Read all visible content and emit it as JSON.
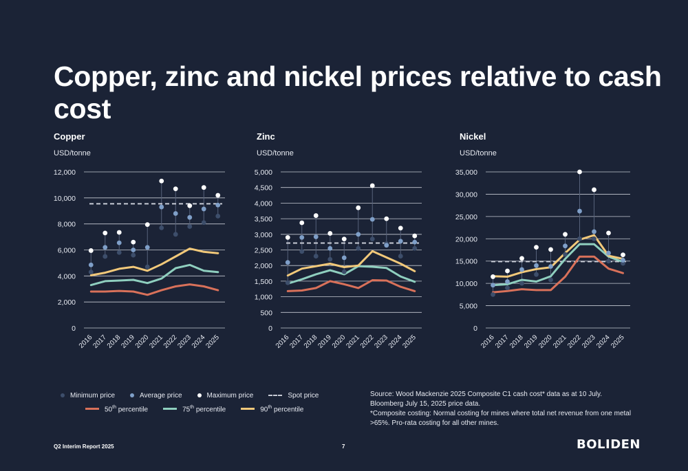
{
  "title": "Copper, zinc and nickel prices relative to cash cost",
  "legend": {
    "min": "Minimum price",
    "avg": "Average price",
    "max": "Maximum price",
    "spot": "Spot price",
    "p50": "50",
    "p75": "75",
    "p90": "90",
    "pct_suffix": "th",
    "pct_word": " percentile"
  },
  "source": {
    "line1": "Source: Wood Mackenzie 2025 Composite C1 cash cost* data as at 10 July. Bloomberg July 15, 2025 price data.",
    "line2": "*Composite costing: Normal costing for mines where total net revenue from one metal >65%. Pro-rata costing for all other mines."
  },
  "footer": {
    "report": "Q2 Interim Report 2025",
    "page": "7",
    "logo": "BOLIDEN"
  },
  "colors": {
    "min": "#3d4e6b",
    "avg": "#7f9fc8",
    "max": "#ffffff",
    "spot": "#c8ccd6",
    "p50": "#d9715a",
    "p75": "#8fcfbf",
    "p90": "#f2c97a",
    "grid": "#d9dde5"
  },
  "chart_data": [
    {
      "type": "line",
      "title": "Copper",
      "ylabel": "USD/tonne",
      "x": [
        "2016",
        "2017",
        "2018",
        "2019",
        "2020",
        "2021",
        "2022",
        "2023",
        "2024",
        "2025"
      ],
      "ylim": [
        0,
        12000
      ],
      "yticks": [
        0,
        2000,
        4000,
        6000,
        8000,
        10000,
        12000
      ],
      "ytick_labels": [
        "0",
        "2,000",
        "4,000",
        "6,000",
        "8,000",
        "10,000",
        "12,000"
      ],
      "spot": 9550,
      "min": [
        4300,
        5500,
        5800,
        5600,
        4700,
        7700,
        7200,
        7800,
        8100,
        8600
      ],
      "avg": [
        4850,
        6200,
        6550,
        6000,
        6200,
        9300,
        8800,
        8500,
        9150,
        9450
      ],
      "max": [
        5950,
        7300,
        7350,
        6600,
        7950,
        11300,
        10700,
        9400,
        10800,
        10200
      ],
      "series": [
        {
          "key": "p50",
          "values": [
            2800,
            2800,
            2850,
            2800,
            2550,
            2900,
            3200,
            3350,
            3200,
            2900
          ]
        },
        {
          "key": "p75",
          "values": [
            3300,
            3600,
            3650,
            3700,
            3450,
            3800,
            4600,
            4850,
            4400,
            4300
          ]
        },
        {
          "key": "p90",
          "values": [
            4050,
            4250,
            4550,
            4700,
            4400,
            4900,
            5500,
            6100,
            5850,
            5750
          ]
        }
      ]
    },
    {
      "type": "line",
      "title": "Zinc",
      "ylabel": "USD/tonne",
      "x": [
        "2016",
        "2017",
        "2018",
        "2019",
        "2020",
        "2021",
        "2022",
        "2023",
        "2024",
        "2025"
      ],
      "ylim": [
        0,
        5000
      ],
      "yticks": [
        0,
        500,
        1000,
        1500,
        2000,
        2500,
        3000,
        3500,
        4000,
        4500,
        5000
      ],
      "ytick_labels": [
        "0",
        "500",
        "1,000",
        "1,500",
        "2,000",
        "2,500",
        "3,000",
        "3,500",
        "4,000",
        "4,500",
        "5,000"
      ],
      "spot": 2720,
      "min": [
        1450,
        2450,
        2300,
        2200,
        1800,
        2550,
        2850,
        2700,
        2300,
        2550
      ],
      "avg": [
        2100,
        2900,
        2920,
        2550,
        2250,
        3000,
        3480,
        2650,
        2780,
        2750
      ],
      "max": [
        2900,
        3370,
        3600,
        3030,
        2850,
        3850,
        4560,
        3500,
        3200,
        2950
      ],
      "series": [
        {
          "key": "p50",
          "values": [
            1180,
            1200,
            1280,
            1500,
            1400,
            1280,
            1530,
            1520,
            1320,
            1180
          ]
        },
        {
          "key": "p75",
          "values": [
            1420,
            1560,
            1720,
            1850,
            1720,
            1980,
            1960,
            1920,
            1650,
            1480
          ]
        },
        {
          "key": "p90",
          "values": [
            1680,
            1900,
            1980,
            2060,
            1950,
            2000,
            2460,
            2260,
            2060,
            1820
          ]
        }
      ]
    },
    {
      "type": "line",
      "title": "Nickel",
      "ylabel": "USD/tonne",
      "x": [
        "2016",
        "2017",
        "2018",
        "2019",
        "2020",
        "2021",
        "2022",
        "2023",
        "2024",
        "2025"
      ],
      "ylim": [
        0,
        35000
      ],
      "yticks": [
        0,
        5000,
        10000,
        15000,
        20000,
        25000,
        30000,
        35000
      ],
      "ytick_labels": [
        "0",
        "5,000",
        "10,000",
        "15,000",
        "20,000",
        "25,000",
        "30,000",
        "35,000"
      ],
      "spot": 14900,
      "min": [
        7500,
        9000,
        10000,
        12000,
        10800,
        16500,
        20000,
        20000,
        15000,
        14500
      ],
      "avg": [
        9600,
        10400,
        13100,
        14000,
        13800,
        18400,
        26200,
        21600,
        16800,
        15200
      ],
      "max": [
        11500,
        12800,
        15600,
        18100,
        17600,
        21000,
        35000,
        31000,
        21300,
        16400
      ],
      "series": [
        {
          "key": "p50",
          "values": [
            8000,
            8300,
            8700,
            8500,
            8500,
            11500,
            16000,
            16000,
            13300,
            12300
          ]
        },
        {
          "key": "p75",
          "values": [
            9600,
            9800,
            10800,
            10400,
            11600,
            15500,
            18800,
            18800,
            16000,
            14800
          ]
        },
        {
          "key": "p90",
          "values": [
            11600,
            11500,
            12500,
            13200,
            13600,
            16800,
            19800,
            20800,
            16200,
            15500
          ]
        }
      ]
    }
  ]
}
